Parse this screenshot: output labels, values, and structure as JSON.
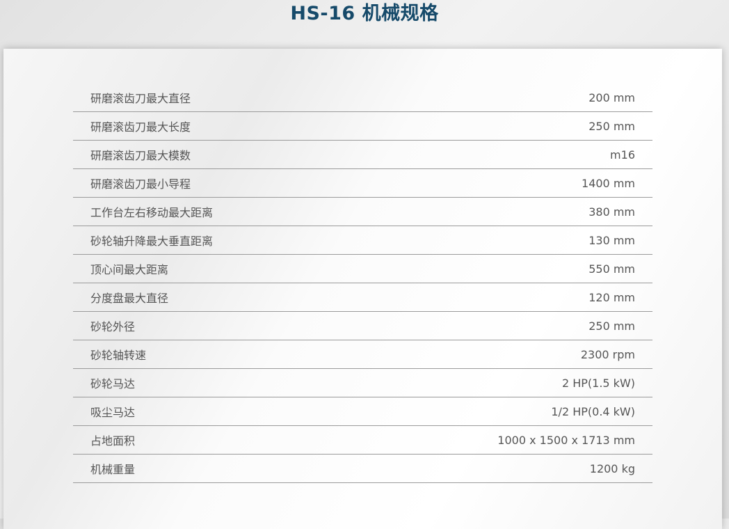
{
  "title": "HS-16 机械规格",
  "colors": {
    "title": "#164a6a",
    "text": "#555555",
    "divider": "#9a9a9a"
  },
  "specs": [
    {
      "label": "研磨滚齿刀最大直径",
      "value": "200 mm"
    },
    {
      "label": "研磨滚齿刀最大长度",
      "value": "250 mm"
    },
    {
      "label": "研磨滚齿刀最大模数",
      "value": "m16"
    },
    {
      "label": "研磨滚齿刀最小导程",
      "value": "1400 mm"
    },
    {
      "label": "工作台左右移动最大距离",
      "value": "380 mm"
    },
    {
      "label": "砂轮轴升降最大垂直距离",
      "value": "130 mm"
    },
    {
      "label": "顶心间最大距离",
      "value": "550 mm"
    },
    {
      "label": "分度盘最大直径",
      "value": "120 mm"
    },
    {
      "label": "砂轮外径",
      "value": "250 mm"
    },
    {
      "label": "砂轮轴转速",
      "value": "2300 rpm"
    },
    {
      "label": "砂轮马达",
      "value": "2 HP(1.5 kW)"
    },
    {
      "label": "吸尘马达",
      "value": "1/2 HP(0.4 kW)"
    },
    {
      "label": "占地面积",
      "value": "1000 x 1500 x 1713 mm"
    },
    {
      "label": "机械重量",
      "value": "1200 kg"
    }
  ]
}
